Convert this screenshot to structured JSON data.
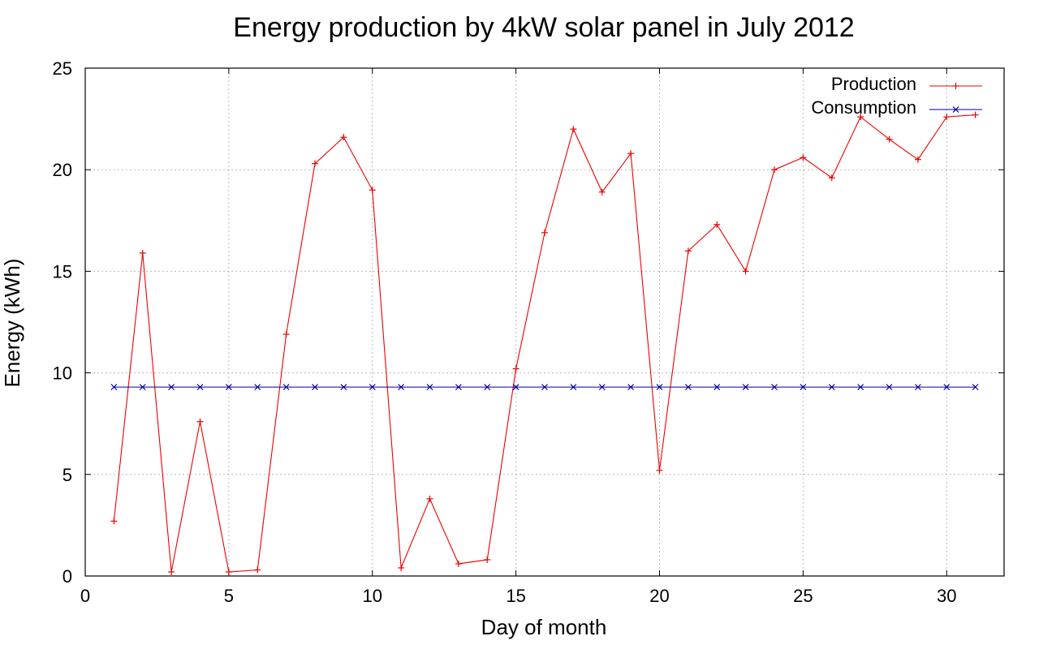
{
  "chart_data": {
    "type": "line",
    "title": "Energy production by 4kW solar panel in July 2012",
    "xlabel": "Day of month",
    "ylabel": "Energy (kWh)",
    "xlim": [
      0,
      32
    ],
    "ylim": [
      0,
      25
    ],
    "xticks": [
      0,
      5,
      10,
      15,
      20,
      25,
      30
    ],
    "yticks": [
      0,
      5,
      10,
      15,
      20,
      25
    ],
    "grid": true,
    "legend_position": "top-right",
    "x": [
      1,
      2,
      3,
      4,
      5,
      6,
      7,
      8,
      9,
      10,
      11,
      12,
      13,
      14,
      15,
      16,
      17,
      18,
      19,
      20,
      21,
      22,
      23,
      24,
      25,
      26,
      27,
      28,
      29,
      30,
      31
    ],
    "series": [
      {
        "name": "Production",
        "color": "#ee0000",
        "marker": "plus",
        "values": [
          2.7,
          15.9,
          0.2,
          7.6,
          0.2,
          0.3,
          11.9,
          20.3,
          21.6,
          19.0,
          0.4,
          3.8,
          0.6,
          0.8,
          10.2,
          16.9,
          22.0,
          18.9,
          20.8,
          5.2,
          16.0,
          17.3,
          15.0,
          20.0,
          20.6,
          19.6,
          22.6,
          21.5,
          20.5,
          22.6,
          22.7
        ]
      },
      {
        "name": "Consumption",
        "color": "#0000a0",
        "marker": "cross",
        "values": [
          9.3,
          9.3,
          9.3,
          9.3,
          9.3,
          9.3,
          9.3,
          9.3,
          9.3,
          9.3,
          9.3,
          9.3,
          9.3,
          9.3,
          9.3,
          9.3,
          9.3,
          9.3,
          9.3,
          9.3,
          9.3,
          9.3,
          9.3,
          9.3,
          9.3,
          9.3,
          9.3,
          9.3,
          9.3,
          9.3,
          9.3
        ]
      }
    ]
  }
}
